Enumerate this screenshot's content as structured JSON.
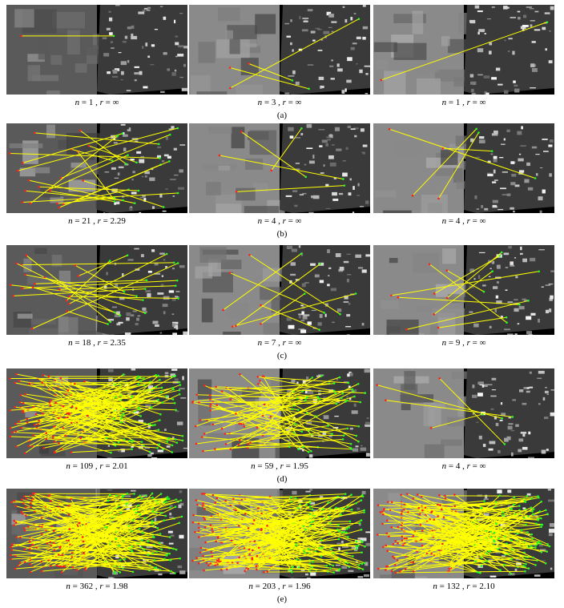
{
  "figure": {
    "rows": [
      {
        "label": "(a)",
        "panels": [
          {
            "n": "1",
            "r": "∞",
            "scene": "optical-sar-golf"
          },
          {
            "n": "3",
            "r": "∞",
            "scene": "optical-sar-farm"
          },
          {
            "n": "1",
            "r": "∞",
            "scene": "optical-sar-field"
          }
        ]
      },
      {
        "label": "(b)",
        "panels": [
          {
            "n": "21",
            "r": "2.29",
            "scene": "optical-sar-golf"
          },
          {
            "n": "4",
            "r": "∞",
            "scene": "optical-sar-farm"
          },
          {
            "n": "4",
            "r": "∞",
            "scene": "optical-sar-field"
          }
        ]
      },
      {
        "label": "(c)",
        "panels": [
          {
            "n": "18",
            "r": "2.35",
            "scene": "optical-sar-golf"
          },
          {
            "n": "7",
            "r": "∞",
            "scene": "optical-sar-farm"
          },
          {
            "n": "9",
            "r": "∞",
            "scene": "optical-sar-field"
          }
        ]
      },
      {
        "label": "(d)",
        "panels": [
          {
            "n": "109",
            "r": "2.01",
            "scene": "optical-sar-golf"
          },
          {
            "n": "59",
            "r": "1.95",
            "scene": "optical-sar-farm"
          },
          {
            "n": "4",
            "r": "∞",
            "scene": "optical-sar-field"
          }
        ]
      },
      {
        "label": "(e)",
        "panels": [
          {
            "n": "362",
            "r": "1.98",
            "scene": "optical-sar-golf"
          },
          {
            "n": "203",
            "r": "1.96",
            "scene": "optical-sar-farm"
          },
          {
            "n": "132",
            "r": "2.10",
            "scene": "optical-sar-field"
          }
        ]
      }
    ],
    "n_symbol": "n",
    "r_symbol": "r",
    "colors": {
      "match_line": "#ffff00",
      "point_left": "#ff2020",
      "point_right": "#20ff20"
    }
  }
}
